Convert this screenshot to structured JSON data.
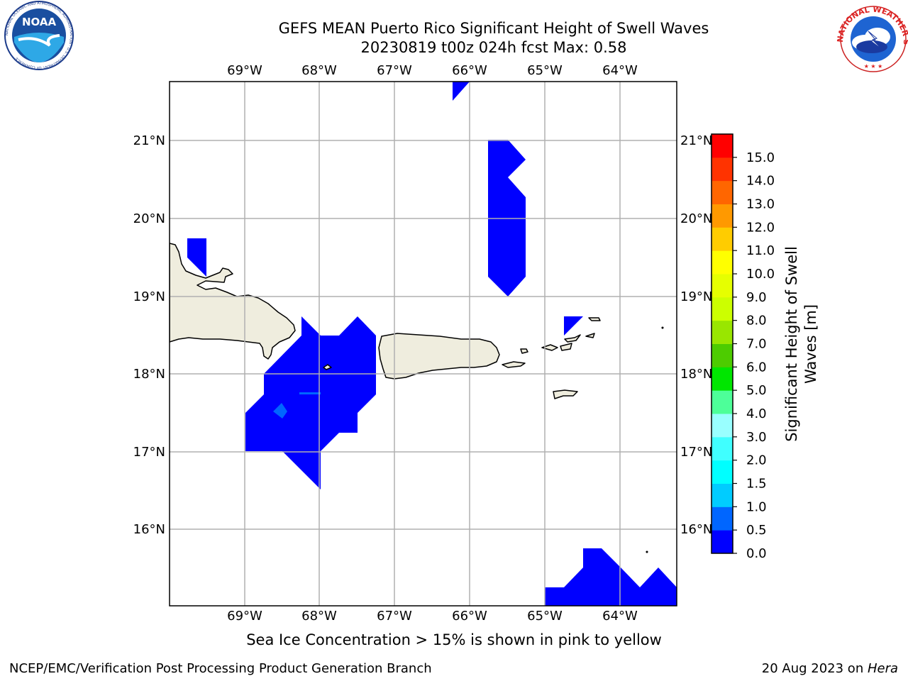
{
  "title": {
    "line1": "GEFS MEAN Puerto Rico Significant Height of Swell Waves",
    "line2": "20230819 t00z 024h fcst   Max: 0.58"
  },
  "map": {
    "lon_ticks": [
      "69°W",
      "68°W",
      "67°W",
      "66°W",
      "65°W",
      "64°W"
    ],
    "lat_ticks": [
      "21°N",
      "20°N",
      "19°N",
      "18°N",
      "17°N",
      "16°N"
    ],
    "land_color": "#efedde",
    "swell_0_05_color": "#0000ff",
    "swell_05_10_color": "#0066ff"
  },
  "colorbar": {
    "label_line1": "Significant Height of Swell",
    "label_line2": "Waves [m]",
    "ticks": [
      "0.0",
      "0.5",
      "1.0",
      "1.5",
      "2.0",
      "3.0",
      "4.0",
      "5.0",
      "6.0",
      "7.0",
      "8.0",
      "9.0",
      "10.0",
      "11.0",
      "12.0",
      "13.0",
      "14.0",
      "15.0"
    ],
    "colors": [
      "#0000ff",
      "#0066ff",
      "#00ccff",
      "#00ffff",
      "#40ffff",
      "#99ffff",
      "#4dff99",
      "#00e600",
      "#4dcc00",
      "#99e600",
      "#ccff00",
      "#e6ff00",
      "#ffff00",
      "#ffcc00",
      "#ff9900",
      "#ff6600",
      "#ff3300",
      "#ff0000"
    ]
  },
  "note": "Sea Ice Concentration > 15% is shown in pink to yellow",
  "footer": {
    "left": "NCEP/EMC/Verification Post Processing Product Generation Branch",
    "date": "20 Aug 2023 on ",
    "machine": "Hera"
  },
  "logos": {
    "noaa_text": "NOAA",
    "noaa_ring": "NATIONAL OCEANIC AND ATMOSPHERIC ADMINISTRATION · U.S. DEPARTMENT OF COMMERCE",
    "nws_ring": "NATIONAL WEATHER SERVICE"
  }
}
